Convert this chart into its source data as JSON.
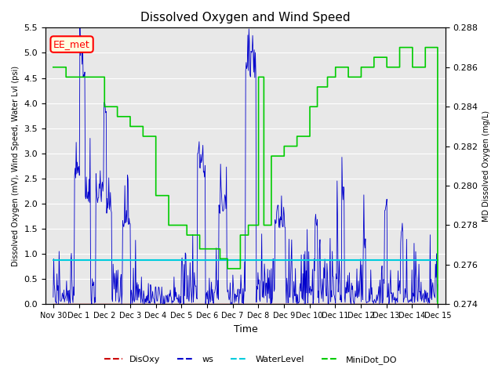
{
  "title": "Dissolved Oxygen and Wind Speed",
  "ylabel_left": "Dissolved Oxygen (mV), Wind Speed, Water Lvl (psi)",
  "ylabel_right": "MD Dissolved Oxygen (mg/L)",
  "xlabel": "Time",
  "ylim_left": [
    0.0,
    5.5
  ],
  "ylim_right": [
    0.274,
    0.288
  ],
  "annotation": "EE_met",
  "bg_color": "#e8e8e8",
  "water_level_value": 0.88,
  "water_level_color": "#00ccdd",
  "disoxy_color": "#cc0000",
  "ws_color": "#0000cc",
  "minidot_color": "#00cc00",
  "legend_items": [
    "DisOxy",
    "ws",
    "WaterLevel",
    "MiniDot_DO"
  ],
  "legend_colors": [
    "#cc0000",
    "#0000cc",
    "#00ccdd",
    "#00cc00"
  ],
  "x_tick_labels": [
    "Nov 30",
    "Dec 1",
    "Dec 2",
    "Dec 3",
    "Dec 4",
    "Dec 5",
    "Dec 6",
    "Dec 7",
    "Dec 8",
    "Dec 9",
    "Dec 10",
    "Dec 11",
    "Dec 12",
    "Dec 13",
    "Dec 14",
    "Dec 15"
  ],
  "yticks_right": [
    0.274,
    0.276,
    0.278,
    0.28,
    0.282,
    0.284,
    0.286,
    0.288
  ]
}
